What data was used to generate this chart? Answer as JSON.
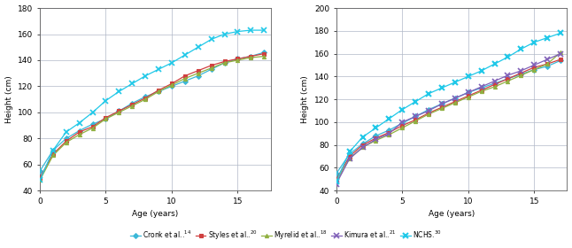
{
  "girls": {
    "cronk": {
      "x": [
        0,
        1,
        2,
        3,
        4,
        5,
        6,
        7,
        8,
        9,
        10,
        11,
        12,
        13,
        14,
        15,
        16,
        17
      ],
      "y": [
        55,
        71,
        80,
        86,
        91,
        95,
        101,
        107,
        112,
        116,
        120,
        124,
        128,
        133,
        138,
        141,
        143,
        146
      ]
    },
    "styles": {
      "x": [
        0,
        1,
        2,
        3,
        4,
        5,
        6,
        7,
        8,
        9,
        10,
        11,
        12,
        13,
        14,
        15,
        16,
        17
      ],
      "y": [
        50,
        68,
        78,
        85,
        89,
        96,
        101,
        106,
        111,
        117,
        122,
        128,
        132,
        136,
        139,
        141,
        143,
        145
      ]
    },
    "myrelid": {
      "x": [
        0,
        1,
        2,
        3,
        4,
        5,
        6,
        7,
        8,
        9,
        10,
        11,
        12,
        13,
        14,
        15,
        16,
        17
      ],
      "y": [
        48,
        67,
        77,
        83,
        88,
        95,
        100,
        105,
        110,
        116,
        121,
        126,
        130,
        134,
        138,
        140,
        142,
        143
      ]
    },
    "nchs": {
      "x": [
        0,
        1,
        2,
        3,
        4,
        5,
        6,
        7,
        8,
        9,
        10,
        11,
        12,
        13,
        14,
        15,
        16,
        17
      ],
      "y": [
        48,
        71,
        85,
        92,
        100,
        109,
        116,
        122,
        128,
        133,
        138,
        144,
        150,
        156,
        160,
        162,
        163,
        163
      ]
    }
  },
  "boys": {
    "cronk": {
      "x": [
        0,
        1,
        2,
        3,
        4,
        5,
        6,
        7,
        8,
        9,
        10,
        11,
        12,
        13,
        14,
        15,
        16,
        17
      ],
      "y": [
        55,
        72,
        81,
        88,
        93,
        99,
        105,
        111,
        116,
        121,
        126,
        130,
        134,
        138,
        142,
        146,
        149,
        154
      ]
    },
    "styles": {
      "x": [
        0,
        1,
        2,
        3,
        4,
        5,
        6,
        7,
        8,
        9,
        10,
        11,
        12,
        13,
        14,
        15,
        16,
        17
      ],
      "y": [
        50,
        70,
        80,
        86,
        91,
        97,
        102,
        108,
        113,
        118,
        123,
        128,
        133,
        138,
        143,
        148,
        151,
        155
      ]
    },
    "myrelid": {
      "x": [
        0,
        1,
        2,
        3,
        4,
        5,
        6,
        7,
        8,
        9,
        10,
        11,
        12,
        13,
        14,
        15,
        16,
        17
      ],
      "y": [
        48,
        68,
        78,
        84,
        89,
        95,
        101,
        107,
        112,
        117,
        122,
        127,
        131,
        136,
        141,
        146,
        151,
        161
      ]
    },
    "kimura": {
      "x": [
        0,
        1,
        2,
        3,
        4,
        5,
        6,
        7,
        8,
        9,
        10,
        11,
        12,
        13,
        14,
        15,
        16,
        17
      ],
      "y": [
        46,
        68,
        78,
        85,
        90,
        100,
        105,
        110,
        116,
        121,
        126,
        131,
        136,
        141,
        145,
        150,
        155,
        160
      ]
    },
    "nchs": {
      "x": [
        0,
        1,
        2,
        3,
        4,
        5,
        6,
        7,
        8,
        9,
        10,
        11,
        12,
        13,
        14,
        15,
        16,
        17
      ],
      "y": [
        48,
        74,
        87,
        95,
        103,
        111,
        118,
        125,
        130,
        135,
        140,
        145,
        151,
        157,
        164,
        170,
        174,
        178
      ]
    }
  },
  "colors": {
    "cronk": "#3BB8D8",
    "styles": "#D04040",
    "myrelid": "#90B040",
    "kimura": "#8060B8",
    "nchs": "#20C8E8"
  },
  "girls_ylim": [
    40,
    180
  ],
  "boys_ylim": [
    40,
    200
  ],
  "yticks_girls": [
    40,
    60,
    80,
    100,
    120,
    140,
    160,
    180
  ],
  "yticks_boys": [
    40,
    60,
    80,
    100,
    120,
    140,
    160,
    180,
    200
  ],
  "xlim": [
    0,
    17.5
  ],
  "xticks": [
    0,
    5,
    10,
    15
  ],
  "xlabel": "Age (years)",
  "ylabel": "Height (cm)",
  "legend_labels": {
    "cronk": "Cronk et al.",
    "cronk_sup": "14",
    "styles": "Styles et al.",
    "styles_sup": "20",
    "myrelid": "Myrelid et al.",
    "myrelid_sup": "18",
    "kimura": "Kimura et al.",
    "kimura_sup": "21",
    "nchs": "NCHS",
    "nchs_sup": "30"
  }
}
